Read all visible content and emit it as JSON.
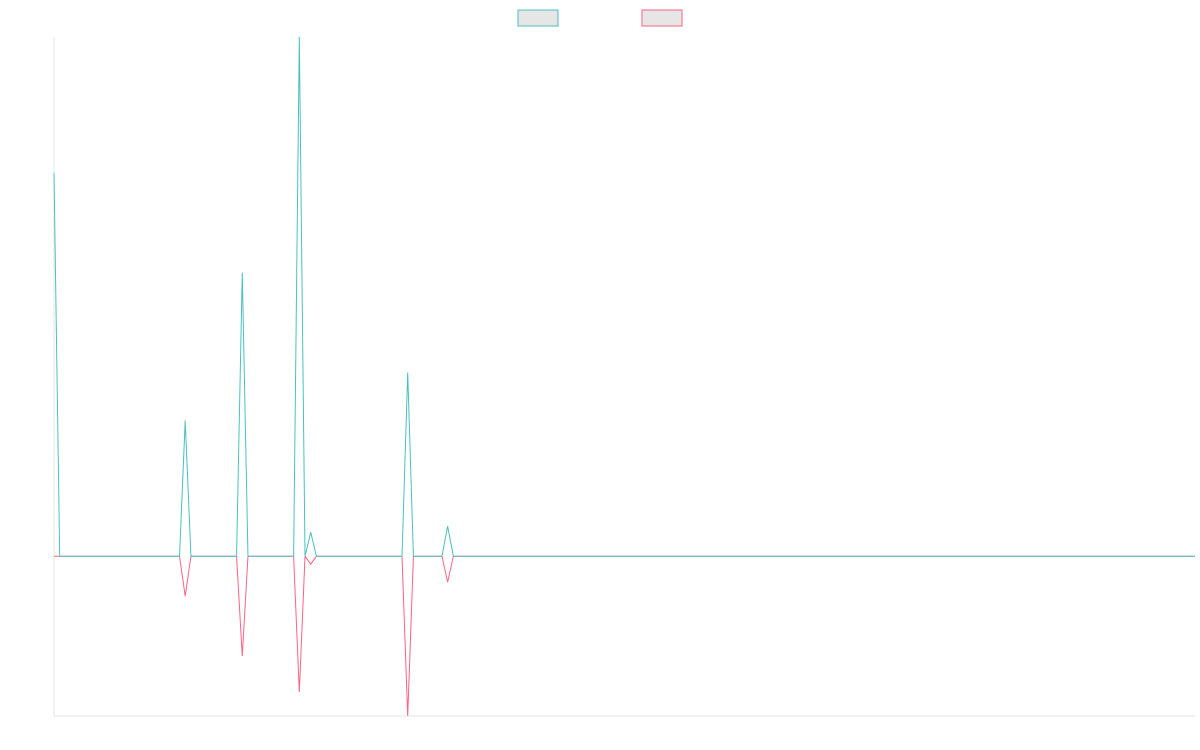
{
  "chart_data": {
    "type": "line",
    "series": [
      {
        "color": "#4bc0c0",
        "values": [
          96,
          0,
          0,
          0,
          0,
          0,
          0,
          0,
          0,
          0,
          0,
          0,
          0,
          0,
          0,
          0,
          0,
          0,
          0,
          0,
          0,
          0,
          0,
          34,
          0,
          0,
          0,
          0,
          0,
          0,
          0,
          0,
          0,
          71,
          0,
          0,
          0,
          0,
          0,
          0,
          0,
          0,
          0,
          130,
          0,
          6,
          0,
          0,
          0,
          0,
          0,
          0,
          0,
          0,
          0,
          0,
          0,
          0,
          0,
          0,
          0,
          0,
          46,
          0,
          0,
          0,
          0,
          0,
          0,
          7.5,
          0,
          0,
          0,
          0,
          0,
          0,
          0,
          0,
          0,
          0,
          0,
          0,
          0,
          0,
          0,
          0,
          0,
          0,
          0,
          0,
          0,
          0,
          0,
          0,
          0,
          0,
          0,
          0,
          0,
          0,
          0,
          0,
          0,
          0,
          0,
          0,
          0,
          0,
          0,
          0,
          0,
          0,
          0,
          0,
          0,
          0,
          0,
          0,
          0,
          0,
          0,
          0,
          0,
          0,
          0,
          0,
          0,
          0,
          0,
          0,
          0,
          0,
          0,
          0,
          0,
          0,
          0,
          0,
          0,
          0,
          0,
          0,
          0,
          0,
          0,
          0,
          0,
          0,
          0,
          0,
          0,
          0,
          0,
          0,
          0,
          0,
          0,
          0,
          0,
          0,
          0,
          0,
          0,
          0,
          0,
          0,
          0,
          0,
          0,
          0,
          0,
          0,
          0,
          0,
          0,
          0,
          0,
          0,
          0,
          0,
          0,
          0,
          0,
          0,
          0,
          0,
          0,
          0,
          0,
          0,
          0,
          0,
          0,
          0,
          0,
          0,
          0,
          0,
          0,
          0,
          0
        ]
      },
      {
        "color": "#ff6384",
        "values": [
          0,
          0,
          0,
          0,
          0,
          0,
          0,
          0,
          0,
          0,
          0,
          0,
          0,
          0,
          0,
          0,
          0,
          0,
          0,
          0,
          0,
          0,
          0,
          -10,
          0,
          0,
          0,
          0,
          0,
          0,
          0,
          0,
          0,
          -25,
          0,
          0,
          0,
          0,
          0,
          0,
          0,
          0,
          0,
          -34,
          0,
          -2,
          0,
          0,
          0,
          0,
          0,
          0,
          0,
          0,
          0,
          0,
          0,
          0,
          0,
          0,
          0,
          0,
          -40,
          0,
          0,
          0,
          0,
          0,
          0,
          -6.5,
          0,
          0,
          0,
          0,
          0,
          0,
          0,
          0,
          0,
          0,
          0,
          0,
          0,
          0,
          0,
          0,
          0,
          0,
          0,
          0,
          0,
          0,
          0,
          0,
          0,
          0,
          0,
          0,
          0,
          0,
          0,
          0,
          0,
          0,
          0,
          0,
          0,
          0,
          0,
          0,
          0,
          0,
          0,
          0,
          0,
          0,
          0,
          0,
          0,
          0,
          0,
          0,
          0,
          0,
          0,
          0,
          0,
          0,
          0,
          0,
          0,
          0,
          0,
          0,
          0,
          0,
          0,
          0,
          0,
          0,
          0,
          0,
          0,
          0,
          0,
          0,
          0,
          0,
          0,
          0,
          0,
          0,
          0,
          0,
          0,
          0,
          0,
          0,
          0,
          0,
          0,
          0,
          0,
          0,
          0,
          0,
          0,
          0,
          0,
          0,
          0,
          0,
          0,
          0,
          0,
          0,
          0,
          0,
          0,
          0,
          0,
          0,
          0,
          0,
          0,
          0,
          0,
          0,
          0,
          0,
          0,
          0,
          0,
          0,
          0,
          0,
          0,
          0,
          0,
          0,
          0
        ]
      }
    ],
    "ylim": [
      -40,
      130
    ],
    "grid": false
  }
}
